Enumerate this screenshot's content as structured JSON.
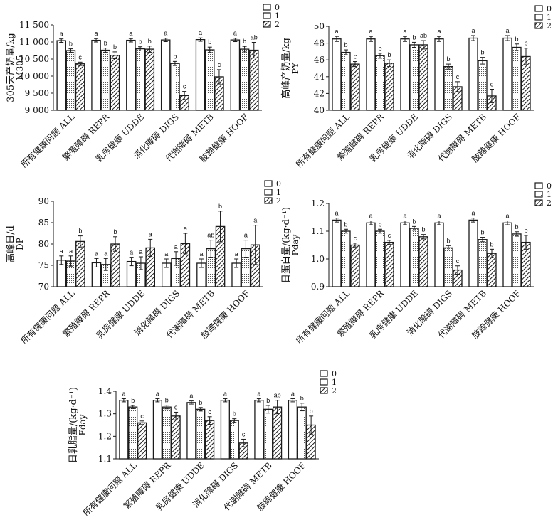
{
  "colors": {
    "series0_fill": "#ffffff",
    "series1_fill": "#e8e8e8",
    "series2_fill": "#ffffff",
    "stroke": "#1a1a1a"
  },
  "patterns": [
    "solid-white",
    "dotted",
    "diagonal-hatch"
  ],
  "chart_data": [
    {
      "type": "bar",
      "ylabel": "305天产奶量/kg",
      "ylabel2": "M305",
      "categories": [
        "所有健康问题 ALL",
        "繁殖障碍 REPR",
        "乳房健康 UDDE",
        "消化障碍 DIGS",
        "代谢障碍 METB",
        "肢蹄健康 HOOF"
      ],
      "ylim": [
        9000,
        11500
      ],
      "yticks": [
        "9 000",
        "9 500",
        "10 000",
        "10 500",
        "11 000",
        "11 500"
      ],
      "grid": false,
      "legend_position": "top-right",
      "series": [
        {
          "name": "0",
          "values": [
            11040,
            11050,
            11050,
            11060,
            11070,
            11060
          ],
          "errors": [
            50,
            50,
            50,
            50,
            50,
            50
          ],
          "labels": [
            "a",
            "a",
            "a",
            "a",
            "a",
            "a"
          ]
        },
        {
          "name": "1",
          "values": [
            10750,
            10760,
            10800,
            10370,
            10770,
            10790
          ],
          "errors": [
            50,
            60,
            60,
            60,
            80,
            80
          ],
          "labels": [
            "b",
            "b",
            "b",
            "b",
            "b",
            "b"
          ]
        },
        {
          "name": "2",
          "values": [
            10360,
            10610,
            10790,
            9430,
            9980,
            10760
          ],
          "errors": [
            50,
            100,
            90,
            120,
            210,
            230
          ],
          "labels": [
            "c",
            "b",
            "b",
            "c",
            "c",
            "ab"
          ]
        }
      ]
    },
    {
      "type": "bar",
      "ylabel": "高峰产奶量/kg",
      "ylabel2": "PY",
      "categories": [
        "所有健康问题 ALL",
        "繁殖障碍 REPR",
        "乳房健康 UDDE",
        "消化障碍 DIGS",
        "代谢障碍 METB",
        "肢蹄健康 HOOF"
      ],
      "ylim": [
        40,
        50
      ],
      "yticks": [
        "40",
        "42",
        "44",
        "46",
        "48",
        "50"
      ],
      "grid": false,
      "legend_position": "top-right",
      "series": [
        {
          "name": "0",
          "values": [
            48.5,
            48.5,
            48.5,
            48.5,
            48.6,
            48.6
          ],
          "errors": [
            0.3,
            0.3,
            0.3,
            0.3,
            0.3,
            0.3
          ],
          "labels": [
            "a",
            "a",
            "a",
            "a",
            "a",
            "a"
          ]
        },
        {
          "name": "1",
          "values": [
            46.9,
            46.5,
            47.8,
            45.2,
            45.9,
            47.5
          ],
          "errors": [
            0.3,
            0.3,
            0.3,
            0.3,
            0.4,
            0.4
          ],
          "labels": [
            "b",
            "b",
            "b",
            "b",
            "b",
            "b"
          ]
        },
        {
          "name": "2",
          "values": [
            45.5,
            45.6,
            47.8,
            42.8,
            41.7,
            46.4
          ],
          "errors": [
            0.3,
            0.4,
            0.5,
            0.6,
            0.8,
            1.0
          ],
          "labels": [
            "c",
            "b",
            "ab",
            "c",
            "c",
            "b"
          ]
        }
      ]
    },
    {
      "type": "bar",
      "ylabel": "高峰日/d",
      "ylabel2": "DP",
      "categories": [
        "所有健康问题 ALL",
        "繁殖障碍 REPR",
        "乳房健康 UDDE",
        "消化障碍 DIGS",
        "代谢障碍 METB",
        "肢蹄健康 HOOF"
      ],
      "ylim": [
        70,
        90
      ],
      "yticks": [
        "70",
        "75",
        "80",
        "85",
        "90"
      ],
      "grid": false,
      "legend_position": "top-right",
      "series": [
        {
          "name": "0",
          "values": [
            76.2,
            75.6,
            75.9,
            75.5,
            75.5,
            75.5
          ],
          "errors": [
            1.0,
            1.0,
            1.0,
            1.0,
            1.0,
            1.0
          ],
          "labels": [
            "a",
            "a",
            "a",
            "a",
            "a",
            "a"
          ]
        },
        {
          "name": "1",
          "values": [
            76.0,
            75.2,
            75.5,
            76.6,
            78.9,
            78.9
          ],
          "errors": [
            1.2,
            1.4,
            1.5,
            1.6,
            2.0,
            2.0
          ],
          "labels": [
            "a",
            "a",
            "a",
            "a",
            "ab",
            "a"
          ]
        },
        {
          "name": "2",
          "values": [
            80.6,
            80.0,
            79.1,
            80.1,
            84.1,
            79.8
          ],
          "errors": [
            1.3,
            1.7,
            2.0,
            2.4,
            3.6,
            4.6
          ],
          "labels": [
            "b",
            "b",
            "a",
            "a",
            "b",
            "a"
          ]
        }
      ]
    },
    {
      "type": "bar",
      "ylabel": "日蛋白量/(kg·d⁻¹)",
      "ylabel2": "Pday",
      "categories": [
        "所有健康问题 ALL",
        "繁殖障碍 REPR",
        "乳房健康 UDDE",
        "消化障碍 DIGS",
        "代谢障碍 METB",
        "肢蹄健康 HOOF"
      ],
      "ylim": [
        0.9,
        1.2
      ],
      "yticks": [
        "0.9",
        "1.0",
        "1.1",
        "1.2"
      ],
      "grid": false,
      "legend_position": "top-right",
      "series": [
        {
          "name": "0",
          "values": [
            1.14,
            1.13,
            1.13,
            1.13,
            1.14,
            1.13
          ],
          "errors": [
            0.007,
            0.007,
            0.007,
            0.007,
            0.007,
            0.007
          ],
          "labels": [
            "a",
            "a",
            "a",
            "a",
            "a",
            "a"
          ]
        },
        {
          "name": "1",
          "values": [
            1.1,
            1.1,
            1.11,
            1.04,
            1.07,
            1.09
          ],
          "errors": [
            0.007,
            0.007,
            0.007,
            0.008,
            0.008,
            0.008
          ],
          "labels": [
            "b",
            "b",
            "b",
            "b",
            "b",
            "b"
          ]
        },
        {
          "name": "2",
          "values": [
            1.05,
            1.06,
            1.08,
            0.96,
            1.02,
            1.06
          ],
          "errors": [
            0.007,
            0.007,
            0.008,
            0.015,
            0.015,
            0.025
          ],
          "labels": [
            "c",
            "c",
            "b",
            "c",
            "b",
            "b"
          ]
        }
      ]
    },
    {
      "type": "bar",
      "ylabel": "日乳脂量/(kg·d⁻¹)",
      "ylabel2": "Fday",
      "categories": [
        "所有健康问题 ALL",
        "繁殖障碍 REPR",
        "乳房健康 UDDE",
        "消化障碍 DIGS",
        "代谢障碍 METB",
        "肢蹄健康 HOOF"
      ],
      "ylim": [
        1.1,
        1.4
      ],
      "yticks": [
        "1.1",
        "1.2",
        "1.3",
        "1.4"
      ],
      "grid": false,
      "legend_position": "top-right",
      "series": [
        {
          "name": "0",
          "values": [
            1.36,
            1.36,
            1.35,
            1.36,
            1.36,
            1.36
          ],
          "errors": [
            0.007,
            0.007,
            0.007,
            0.007,
            0.007,
            0.007
          ],
          "labels": [
            "a",
            "a",
            "a",
            "a",
            "a",
            "a"
          ]
        },
        {
          "name": "1",
          "values": [
            1.33,
            1.33,
            1.32,
            1.27,
            1.32,
            1.33
          ],
          "errors": [
            0.007,
            0.008,
            0.008,
            0.008,
            0.017,
            0.017
          ],
          "labels": [
            "b",
            "b",
            "b",
            "b",
            "b",
            "b"
          ]
        },
        {
          "name": "2",
          "values": [
            1.26,
            1.29,
            1.27,
            1.17,
            1.33,
            1.25
          ],
          "errors": [
            0.008,
            0.017,
            0.017,
            0.017,
            0.03,
            0.04
          ],
          "labels": [
            "c",
            "c",
            "c",
            "c",
            "ab",
            "b"
          ]
        }
      ]
    }
  ]
}
